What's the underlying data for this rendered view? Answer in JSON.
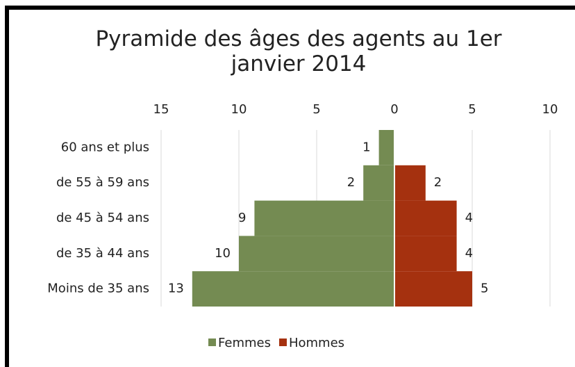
{
  "chart_data": {
    "type": "pyramid",
    "title": "Pyramide des âges des agents au 1er janvier 2014",
    "categories": [
      "60 ans et plus",
      "de 55 à 59 ans",
      "de 45 à 54 ans",
      "de 35 à 44 ans",
      "Moins de 35 ans"
    ],
    "series": [
      {
        "name": "Femmes",
        "color": "#748b52",
        "values": [
          -1,
          -2,
          -9,
          -10,
          -13
        ],
        "value_labels": [
          "1",
          "2",
          "9",
          "10",
          "13"
        ]
      },
      {
        "name": "Hommes",
        "color": "#a5310f",
        "values": [
          null,
          2,
          4,
          4,
          5
        ]
      }
    ],
    "xlim": [
      -15,
      10
    ],
    "xticks": [
      {
        "value": -15,
        "label": "15"
      },
      {
        "value": -10,
        "label": "10"
      },
      {
        "value": -5,
        "label": "5"
      },
      0,
      5,
      10
    ],
    "grid": true,
    "legend": "bottom"
  }
}
